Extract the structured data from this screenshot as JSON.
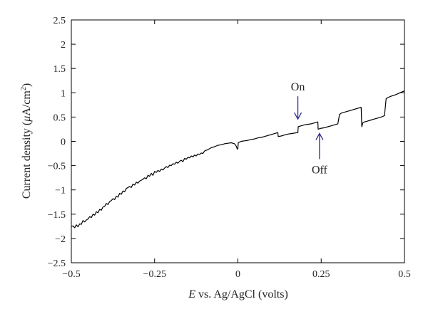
{
  "chart_data": {
    "type": "line",
    "title": "",
    "xlabel": {
      "italic": "E",
      "rest": " vs. Ag/AgCl (volts)"
    },
    "ylabel": {
      "prefix": "Current density (",
      "mu": "μ",
      "unit": "A/cm",
      "sup": "2",
      "suffix": ")"
    },
    "xlim": [
      -0.5,
      0.5
    ],
    "ylim": [
      -2.5,
      2.5
    ],
    "xticks": [
      -0.5,
      -0.25,
      0,
      0.25,
      0.5
    ],
    "xtick_labels": [
      "−0.5",
      "−0.25",
      "0",
      "0.25",
      "0.5"
    ],
    "yticks": [
      2.5,
      2,
      1.5,
      1,
      0.5,
      0,
      -0.5,
      -1,
      -1.5,
      -2,
      -2.5
    ],
    "ytick_labels": [
      "2.5",
      "2",
      "1.5",
      "1",
      "0.5",
      "0",
      "−0.5",
      "−1",
      "−1.5",
      "−2",
      "−2.5"
    ],
    "grid": false,
    "series": [
      {
        "color": "#000000",
        "x": [
          -0.5,
          -0.495,
          -0.49,
          -0.485,
          -0.48,
          -0.475,
          -0.47,
          -0.465,
          -0.46,
          -0.455,
          -0.45,
          -0.445,
          -0.44,
          -0.435,
          -0.43,
          -0.425,
          -0.42,
          -0.415,
          -0.41,
          -0.405,
          -0.4,
          -0.395,
          -0.39,
          -0.385,
          -0.38,
          -0.375,
          -0.37,
          -0.365,
          -0.36,
          -0.355,
          -0.35,
          -0.345,
          -0.34,
          -0.335,
          -0.33,
          -0.325,
          -0.32,
          -0.315,
          -0.31,
          -0.305,
          -0.3,
          -0.295,
          -0.29,
          -0.285,
          -0.28,
          -0.275,
          -0.27,
          -0.265,
          -0.26,
          -0.255,
          -0.25,
          -0.245,
          -0.24,
          -0.235,
          -0.23,
          -0.225,
          -0.22,
          -0.215,
          -0.21,
          -0.205,
          -0.2,
          -0.195,
          -0.19,
          -0.185,
          -0.18,
          -0.175,
          -0.17,
          -0.165,
          -0.16,
          -0.155,
          -0.15,
          -0.145,
          -0.14,
          -0.135,
          -0.13,
          -0.125,
          -0.12,
          -0.115,
          -0.11,
          -0.105,
          -0.1,
          -0.09,
          -0.08,
          -0.07,
          -0.06,
          -0.05,
          -0.04,
          -0.03,
          -0.02,
          -0.01,
          -0.005,
          -0.002,
          0.0,
          0.001,
          0.003,
          0.01,
          0.02,
          0.03,
          0.04,
          0.05,
          0.06,
          0.07,
          0.08,
          0.09,
          0.1,
          0.11,
          0.12,
          0.121,
          0.13,
          0.14,
          0.15,
          0.16,
          0.17,
          0.18,
          0.181,
          0.19,
          0.2,
          0.21,
          0.22,
          0.23,
          0.24,
          0.241,
          0.25,
          0.26,
          0.27,
          0.28,
          0.29,
          0.3,
          0.305,
          0.31,
          0.32,
          0.33,
          0.34,
          0.35,
          0.36,
          0.37,
          0.372,
          0.375,
          0.38,
          0.39,
          0.4,
          0.41,
          0.42,
          0.43,
          0.44,
          0.445,
          0.45,
          0.46,
          0.47,
          0.48,
          0.49,
          0.5
        ],
        "y": [
          -1.75,
          -1.74,
          -1.78,
          -1.72,
          -1.76,
          -1.7,
          -1.71,
          -1.63,
          -1.66,
          -1.62,
          -1.6,
          -1.55,
          -1.57,
          -1.5,
          -1.52,
          -1.45,
          -1.47,
          -1.4,
          -1.42,
          -1.35,
          -1.34,
          -1.28,
          -1.3,
          -1.24,
          -1.22,
          -1.18,
          -1.2,
          -1.13,
          -1.15,
          -1.07,
          -1.09,
          -1.02,
          -1.04,
          -0.97,
          -0.95,
          -0.93,
          -0.95,
          -0.88,
          -0.9,
          -0.84,
          -0.86,
          -0.82,
          -0.8,
          -0.78,
          -0.75,
          -0.77,
          -0.7,
          -0.72,
          -0.66,
          -0.7,
          -0.62,
          -0.64,
          -0.6,
          -0.62,
          -0.57,
          -0.59,
          -0.55,
          -0.52,
          -0.54,
          -0.49,
          -0.5,
          -0.46,
          -0.47,
          -0.43,
          -0.45,
          -0.41,
          -0.39,
          -0.42,
          -0.35,
          -0.37,
          -0.33,
          -0.34,
          -0.3,
          -0.32,
          -0.28,
          -0.3,
          -0.26,
          -0.27,
          -0.24,
          -0.25,
          -0.2,
          -0.17,
          -0.13,
          -0.11,
          -0.08,
          -0.07,
          -0.05,
          -0.04,
          -0.03,
          -0.05,
          -0.1,
          -0.16,
          -0.15,
          -0.03,
          -0.02,
          0.0,
          0.01,
          0.02,
          0.04,
          0.05,
          0.07,
          0.08,
          0.1,
          0.12,
          0.14,
          0.16,
          0.18,
          0.1,
          0.11,
          0.13,
          0.15,
          0.16,
          0.17,
          0.18,
          0.3,
          0.32,
          0.34,
          0.35,
          0.36,
          0.38,
          0.4,
          0.25,
          0.27,
          0.28,
          0.3,
          0.32,
          0.34,
          0.36,
          0.55,
          0.58,
          0.6,
          0.62,
          0.64,
          0.66,
          0.68,
          0.7,
          0.3,
          0.38,
          0.4,
          0.42,
          0.44,
          0.46,
          0.48,
          0.5,
          0.53,
          0.88,
          0.9,
          0.93,
          0.95,
          0.98,
          1.01,
          1.04
        ]
      }
    ],
    "annotations": [
      {
        "text": "On",
        "x": 0.18,
        "y": 0.4,
        "direction": "down"
      },
      {
        "text": "Off",
        "x": 0.245,
        "y": 0.25,
        "direction": "up"
      }
    ],
    "arrow_color": "#2c2c8a"
  }
}
